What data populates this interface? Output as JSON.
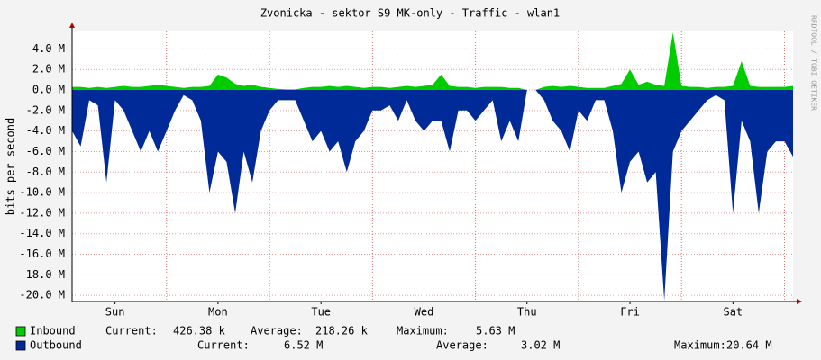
{
  "chart_data": {
    "type": "area",
    "title": "Zvonicka - sektor S9 MK-only - Traffic - wlan1",
    "y_label": "bits per second",
    "watermark": "RRDTOOL / TOBI OETIKER",
    "x": [
      0,
      2,
      4,
      6,
      8,
      10,
      12,
      14,
      16,
      18,
      20,
      22,
      24,
      26,
      28,
      30,
      32,
      34,
      36,
      38,
      40,
      42,
      44,
      46,
      48,
      50,
      52,
      54,
      56,
      58,
      60,
      62,
      64,
      66,
      68,
      70,
      72,
      74,
      76,
      78,
      80,
      82,
      84,
      86,
      88,
      90,
      92,
      94,
      96,
      98,
      100,
      102,
      104,
      106,
      108,
      110,
      112,
      114,
      116,
      118,
      120,
      122,
      124,
      126,
      128,
      130,
      132,
      134,
      136,
      138,
      140,
      142,
      144,
      146,
      148,
      150,
      152,
      154,
      156,
      158,
      160,
      162,
      164,
      166,
      168
    ],
    "xlim": [
      0,
      168
    ],
    "xticks": [
      {
        "value": 10,
        "label": "Sun"
      },
      {
        "value": 34,
        "label": "Mon"
      },
      {
        "value": 58,
        "label": "Tue"
      },
      {
        "value": 82,
        "label": "Wed"
      },
      {
        "value": 106,
        "label": "Thu"
      },
      {
        "value": 130,
        "label": "Fri"
      },
      {
        "value": 154,
        "label": "Sat"
      }
    ],
    "xgrid": [
      22,
      46,
      70,
      94,
      118,
      142,
      166
    ],
    "ylim": [
      -20.6,
      5.7
    ],
    "yticks": [
      {
        "value": 4,
        "label": "4.0 M"
      },
      {
        "value": 2,
        "label": "2.0 M"
      },
      {
        "value": 0,
        "label": "0.0 M"
      },
      {
        "value": -2,
        "label": "-2.0 M"
      },
      {
        "value": -4,
        "label": "-4.0 M"
      },
      {
        "value": -6,
        "label": "-6.0 M"
      },
      {
        "value": -8,
        "label": "-8.0 M"
      },
      {
        "value": -10,
        "label": "-10.0 M"
      },
      {
        "value": -12,
        "label": "-12.0 M"
      },
      {
        "value": -14,
        "label": "-14.0 M"
      },
      {
        "value": -16,
        "label": "-16.0 M"
      },
      {
        "value": -18,
        "label": "-18.0 M"
      },
      {
        "value": -20,
        "label": "-20.0 M"
      }
    ],
    "grid": true,
    "series": [
      {
        "name": "Inbound",
        "color": "#00cc00",
        "values": [
          0.3,
          0.3,
          0.2,
          0.3,
          0.2,
          0.3,
          0.4,
          0.3,
          0.3,
          0.4,
          0.5,
          0.4,
          0.3,
          0.2,
          0.3,
          0.3,
          0.4,
          1.5,
          1.2,
          0.6,
          0.4,
          0.5,
          0.3,
          0.2,
          0.1,
          0.05,
          0.05,
          0.2,
          0.3,
          0.3,
          0.4,
          0.3,
          0.4,
          0.3,
          0.2,
          0.3,
          0.3,
          0.2,
          0.3,
          0.4,
          0.3,
          0.4,
          0.5,
          1.5,
          0.4,
          0.3,
          0.3,
          0.2,
          0.3,
          0.3,
          0.3,
          0.2,
          0.2,
          0,
          0,
          0.3,
          0.4,
          0.3,
          0.4,
          0.3,
          0.2,
          0.2,
          0.2,
          0.4,
          0.6,
          2.0,
          0.5,
          0.8,
          0.5,
          0.4,
          5.6,
          0.4,
          0.3,
          0.3,
          0.2,
          0.3,
          0.3,
          0.4,
          2.8,
          0.4,
          0.3,
          0.3,
          0.3,
          0.3,
          0.4
        ],
        "stats": [
          {
            "label": "Current:",
            "value": "426.38 k"
          },
          {
            "label": "Average:",
            "value": "218.26 k"
          },
          {
            "label": "Maximum:",
            "value": "5.63 M"
          }
        ]
      },
      {
        "name": "Outbound",
        "color": "#002a97",
        "values": [
          -4,
          -5.5,
          -1,
          -1.5,
          -9,
          -1,
          -2,
          -4,
          -6,
          -4,
          -6,
          -4,
          -2,
          -0.5,
          -1,
          -3,
          -10,
          -6,
          -7,
          -12,
          -6,
          -9,
          -4,
          -2,
          -1,
          -1,
          -1,
          -3,
          -5,
          -4,
          -6,
          -5,
          -8,
          -5,
          -4,
          -2,
          -2,
          -1.5,
          -3,
          -1,
          -3,
          -4,
          -3,
          -3,
          -6,
          -2,
          -2,
          -3,
          -2,
          -1,
          -5,
          -3,
          -5,
          0,
          0,
          -1,
          -3,
          -4,
          -6,
          -2,
          -3,
          -1,
          -1,
          -4,
          -10,
          -7,
          -6,
          -9,
          -8,
          -20.5,
          -6,
          -4,
          -3,
          -2,
          -1,
          -0.5,
          -1,
          -12,
          -3,
          -5,
          -12,
          -6,
          -5,
          -5,
          -6.5
        ],
        "stats": [
          {
            "label": "Current:",
            "value": "6.52 M"
          },
          {
            "label": "Average:",
            "value": "3.02 M"
          },
          {
            "label": "Maximum:",
            "value": "20.64 M"
          }
        ]
      }
    ]
  }
}
